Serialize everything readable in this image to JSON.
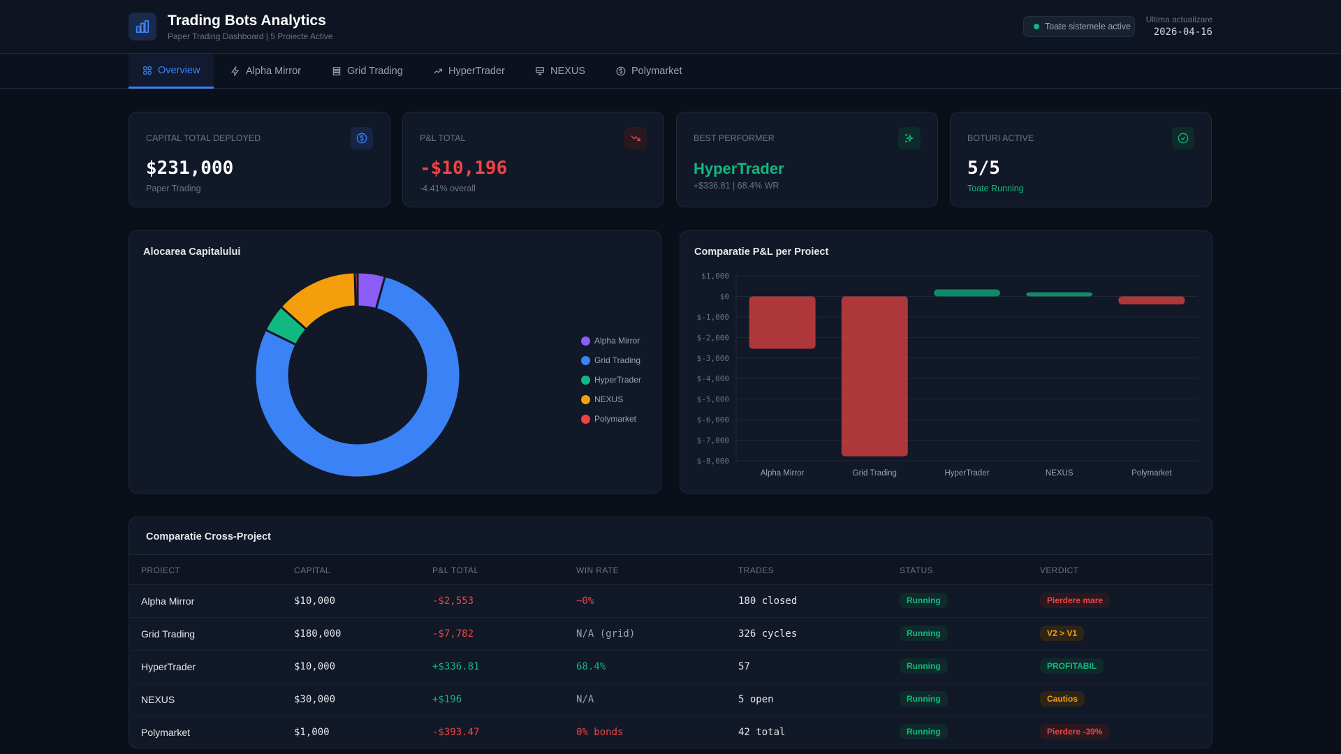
{
  "header": {
    "title": "Trading Bots Analytics",
    "subtitle": "Paper Trading Dashboard | 5 Proiecte Active",
    "status": "Toate sistemele active",
    "updated_label": "Ultima actualizare",
    "updated_value": "2026-04-16",
    "logo_icon": "bar-chart-icon"
  },
  "tabs": [
    {
      "label": "Overview",
      "icon": "grid-icon",
      "active": true
    },
    {
      "label": "Alpha Mirror",
      "icon": "lightning-icon"
    },
    {
      "label": "Grid Trading",
      "icon": "server-icon"
    },
    {
      "label": "HyperTrader",
      "icon": "trending-up-icon"
    },
    {
      "label": "NEXUS",
      "icon": "monitor-icon"
    },
    {
      "label": "Polymarket",
      "icon": "dollar-circle-icon"
    }
  ],
  "cards": [
    {
      "label": "Capital Total Deployed",
      "value": "$231,000",
      "sub": "Paper Trading",
      "icon": "dollar-circle-icon",
      "color": "#ffffff"
    },
    {
      "label": "P&L Total",
      "value": "-$10,196",
      "sub": "-4.41% overall",
      "icon": "trending-down-icon",
      "color": "#ef4444"
    },
    {
      "label": "Best Performer",
      "value": "HyperTrader",
      "sub": "+$336.81 | 68.4% WR",
      "icon": "sparkles-icon",
      "color": "#10b981"
    },
    {
      "label": "Boturi Active",
      "value": "5/5",
      "sub": "Toate Running",
      "icon": "check-circle-icon",
      "color": "#ffffff"
    }
  ],
  "chart_data": [
    {
      "type": "pie",
      "title": "Alocarea Capitalului",
      "categories": [
        "Alpha Mirror",
        "Grid Trading",
        "HyperTrader",
        "NEXUS",
        "Polymarket"
      ],
      "values": [
        10000,
        180000,
        10000,
        30000,
        1000
      ],
      "colors": [
        "#8b5cf6",
        "#3b82f6",
        "#10b981",
        "#f59e0b",
        "#ef4444"
      ],
      "donut": true,
      "legend": "right"
    },
    {
      "type": "bar",
      "title": "Comparatie P&L per Proiect",
      "categories": [
        "Alpha Mirror",
        "Grid Trading",
        "HyperTrader",
        "NEXUS",
        "Polymarket"
      ],
      "values": [
        -2553,
        -7782,
        336.81,
        196,
        -393.47
      ],
      "ylim": [
        -8000,
        1000
      ],
      "yticks": [
        "$1,000",
        "$0",
        "$-1,000",
        "$-2,000",
        "$-3,000",
        "$-4,000",
        "$-5,000",
        "$-6,000",
        "$-7,000",
        "$-8,000"
      ],
      "grid": true,
      "colors": {
        "positive": "#10b981",
        "negative": "#ef4444"
      }
    }
  ],
  "table": {
    "title": "Comparatie Cross-Project",
    "columns": [
      "Proiect",
      "Capital",
      "P&L Total",
      "Win Rate",
      "Trades",
      "Status",
      "Verdict"
    ],
    "rows": [
      {
        "project": "Alpha Mirror",
        "capital": "$10,000",
        "pnl": "-$2,553",
        "pnl_c": "r",
        "wr": "~0%",
        "wr_c": "r",
        "trades": "180 closed",
        "status": "Running",
        "verdict": "Pierdere mare",
        "v_c": "red"
      },
      {
        "project": "Grid Trading",
        "capital": "$180,000",
        "pnl": "-$7,782",
        "pnl_c": "r",
        "wr": "N/A (grid)",
        "wr_c": "mu",
        "trades": "326 cycles",
        "status": "Running",
        "verdict": "V2 > V1",
        "v_c": "amber"
      },
      {
        "project": "HyperTrader",
        "capital": "$10,000",
        "pnl": "+$336.81",
        "pnl_c": "g",
        "wr": "68.4%",
        "wr_c": "g",
        "trades": "57",
        "status": "Running",
        "verdict": "PROFITABIL",
        "v_c": "green"
      },
      {
        "project": "NEXUS",
        "capital": "$30,000",
        "pnl": "+$196",
        "pnl_c": "g",
        "wr": "N/A",
        "wr_c": "mu",
        "trades": "5 open",
        "status": "Running",
        "verdict": "Cautios",
        "v_c": "amber"
      },
      {
        "project": "Polymarket",
        "capital": "$1,000",
        "pnl": "-$393.47",
        "pnl_c": "r",
        "wr": "0% bonds",
        "wr_c": "r",
        "trades": "42 total",
        "status": "Running",
        "verdict": "Pierdere -39%",
        "v_c": "red"
      }
    ]
  }
}
